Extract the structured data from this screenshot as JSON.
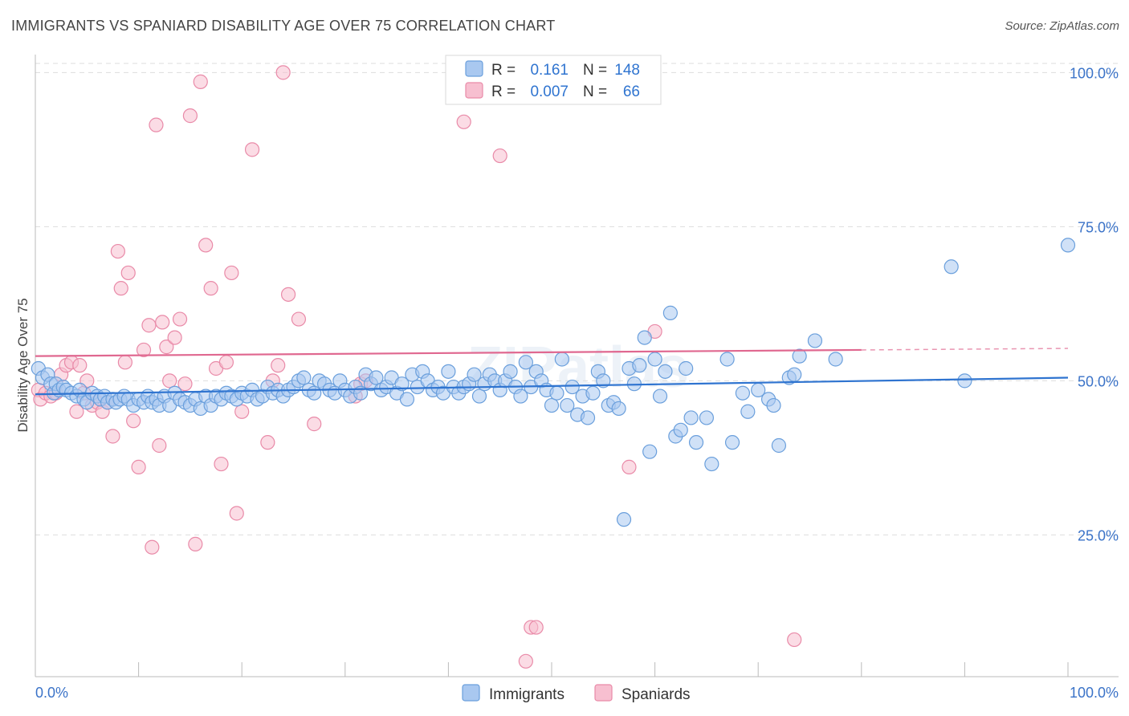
{
  "title": "IMMIGRANTS VS SPANIARD DISABILITY AGE OVER 75 CORRELATION CHART",
  "source": "Source: ZipAtlas.com",
  "watermark": "ZIPatlas",
  "colors": {
    "immigrants_fill": "#a9c8f0",
    "immigrants_stroke": "#6a9fdc",
    "immigrants_line": "#2f74d0",
    "spaniards_fill": "#f7bfd0",
    "spaniards_stroke": "#e98aa8",
    "spaniards_line": "#e06890",
    "tick_text": "#3b73c8",
    "grid": "#dddddd"
  },
  "stats_box": {
    "rows": [
      {
        "r_label": "R =",
        "r_value": "0.161",
        "n_label": "N =",
        "n_value": "148"
      },
      {
        "r_label": "R =",
        "r_value": "0.007",
        "n_label": "N =",
        "n_value": "66"
      }
    ]
  },
  "chart_data": {
    "type": "scatter",
    "title": "IMMIGRANTS VS SPANIARD DISABILITY AGE OVER 75 CORRELATION CHART",
    "xlabel": "",
    "ylabel": "Disability Age Over 75",
    "xlim": [
      0,
      100
    ],
    "ylim": [
      2,
      102
    ],
    "x_tick_labels": [
      "0.0%",
      "100.0%"
    ],
    "y_ticks": [
      25,
      50,
      75,
      100
    ],
    "y_tick_labels": [
      "25.0%",
      "50.0%",
      "75.0%",
      "100.0%"
    ],
    "grid": "horizontal dashed",
    "legend_position": "bottom-center",
    "series": [
      {
        "name": "Immigrants",
        "trend": {
          "x0": 0,
          "y0": 47.8,
          "x1": 100,
          "y1": 50.5
        },
        "points": [
          [
            0.3,
            52.0
          ],
          [
            0.7,
            50.5
          ],
          [
            1.2,
            51.0
          ],
          [
            1.5,
            49.5
          ],
          [
            1.8,
            48.0
          ],
          [
            2.0,
            49.5
          ],
          [
            2.3,
            48.5
          ],
          [
            2.7,
            49.0
          ],
          [
            3.0,
            48.5
          ],
          [
            3.5,
            48.0
          ],
          [
            4.0,
            47.5
          ],
          [
            4.3,
            48.5
          ],
          [
            4.7,
            47.0
          ],
          [
            5.0,
            46.5
          ],
          [
            5.5,
            48.0
          ],
          [
            6.0,
            47.5
          ],
          [
            6.3,
            47.0
          ],
          [
            6.7,
            47.5
          ],
          [
            7.0,
            46.5
          ],
          [
            7.5,
            47.0
          ],
          [
            7.8,
            46.5
          ],
          [
            8.2,
            47.0
          ],
          [
            8.6,
            47.5
          ],
          [
            9.0,
            47.0
          ],
          [
            9.5,
            46.0
          ],
          [
            10.0,
            47.0
          ],
          [
            10.5,
            46.5
          ],
          [
            10.9,
            47.5
          ],
          [
            11.3,
            46.5
          ],
          [
            11.7,
            47.0
          ],
          [
            12.0,
            46.0
          ],
          [
            12.5,
            47.5
          ],
          [
            13.0,
            46.0
          ],
          [
            13.5,
            48.0
          ],
          [
            14.0,
            47.0
          ],
          [
            14.5,
            46.5
          ],
          [
            15.0,
            46.0
          ],
          [
            15.5,
            47.0
          ],
          [
            16.0,
            45.5
          ],
          [
            16.5,
            47.5
          ],
          [
            17.0,
            46.0
          ],
          [
            17.5,
            47.5
          ],
          [
            18.0,
            47.0
          ],
          [
            18.5,
            48.0
          ],
          [
            19.0,
            47.5
          ],
          [
            19.5,
            47.0
          ],
          [
            20.0,
            48.0
          ],
          [
            20.5,
            47.5
          ],
          [
            21.0,
            48.5
          ],
          [
            21.5,
            47.0
          ],
          [
            22.0,
            47.5
          ],
          [
            22.5,
            49.0
          ],
          [
            23.0,
            48.0
          ],
          [
            23.5,
            48.5
          ],
          [
            24.0,
            47.5
          ],
          [
            24.5,
            48.5
          ],
          [
            25.0,
            49.0
          ],
          [
            25.5,
            50.0
          ],
          [
            26.0,
            50.5
          ],
          [
            26.5,
            48.5
          ],
          [
            27.0,
            48.0
          ],
          [
            27.5,
            50.0
          ],
          [
            28.0,
            49.5
          ],
          [
            28.5,
            48.5
          ],
          [
            29.0,
            48.0
          ],
          [
            29.5,
            50.0
          ],
          [
            30.0,
            48.5
          ],
          [
            30.5,
            47.5
          ],
          [
            31.0,
            49.0
          ],
          [
            31.5,
            48.0
          ],
          [
            32.0,
            51.0
          ],
          [
            32.5,
            49.5
          ],
          [
            33.0,
            50.5
          ],
          [
            33.5,
            48.5
          ],
          [
            34.0,
            49.0
          ],
          [
            34.5,
            50.5
          ],
          [
            35.0,
            48.0
          ],
          [
            35.5,
            49.5
          ],
          [
            36.0,
            47.0
          ],
          [
            36.5,
            51.0
          ],
          [
            37.0,
            49.0
          ],
          [
            37.5,
            51.5
          ],
          [
            38.0,
            50.0
          ],
          [
            38.5,
            48.5
          ],
          [
            39.0,
            49.0
          ],
          [
            39.5,
            48.0
          ],
          [
            40.0,
            51.5
          ],
          [
            40.5,
            49.0
          ],
          [
            41.0,
            48.0
          ],
          [
            41.5,
            49.0
          ],
          [
            42.0,
            49.5
          ],
          [
            42.5,
            51.0
          ],
          [
            43.0,
            47.5
          ],
          [
            43.5,
            49.5
          ],
          [
            44.0,
            51.0
          ],
          [
            44.5,
            50.0
          ],
          [
            45.0,
            48.5
          ],
          [
            45.5,
            50.0
          ],
          [
            46.0,
            51.5
          ],
          [
            46.5,
            49.0
          ],
          [
            47.0,
            47.5
          ],
          [
            47.5,
            53.0
          ],
          [
            48.0,
            49.0
          ],
          [
            48.5,
            51.5
          ],
          [
            49.0,
            50.0
          ],
          [
            49.5,
            48.5
          ],
          [
            50.0,
            46.0
          ],
          [
            50.5,
            48.0
          ],
          [
            51.0,
            53.5
          ],
          [
            51.5,
            46.0
          ],
          [
            52.0,
            49.0
          ],
          [
            52.5,
            44.5
          ],
          [
            53.0,
            47.5
          ],
          [
            53.5,
            44.0
          ],
          [
            54.0,
            48.0
          ],
          [
            54.5,
            51.5
          ],
          [
            55.0,
            50.0
          ],
          [
            55.5,
            46.0
          ],
          [
            56.0,
            46.5
          ],
          [
            56.5,
            45.5
          ],
          [
            57.0,
            27.5
          ],
          [
            57.5,
            52.0
          ],
          [
            58.0,
            49.5
          ],
          [
            58.5,
            52.5
          ],
          [
            59.0,
            57.0
          ],
          [
            59.5,
            38.5
          ],
          [
            60.0,
            53.5
          ],
          [
            60.5,
            47.5
          ],
          [
            61.0,
            51.5
          ],
          [
            61.5,
            61.0
          ],
          [
            62.0,
            41.0
          ],
          [
            62.5,
            42.0
          ],
          [
            63.0,
            52.0
          ],
          [
            63.5,
            44.0
          ],
          [
            64.0,
            40.0
          ],
          [
            65.0,
            44.0
          ],
          [
            65.5,
            36.5
          ],
          [
            67.0,
            53.5
          ],
          [
            67.5,
            40.0
          ],
          [
            68.5,
            48.0
          ],
          [
            69.0,
            45.0
          ],
          [
            70.0,
            48.5
          ],
          [
            71.0,
            47.0
          ],
          [
            71.5,
            46.0
          ],
          [
            72.0,
            39.5
          ],
          [
            73.0,
            50.5
          ],
          [
            73.5,
            51.0
          ],
          [
            74.0,
            54.0
          ],
          [
            75.5,
            56.5
          ],
          [
            77.5,
            53.5
          ],
          [
            88.7,
            68.5
          ],
          [
            90.0,
            50.0
          ],
          [
            100.0,
            72.0
          ]
        ]
      },
      {
        "name": "Spaniards",
        "trend": {
          "x0": 0,
          "y0": 54.0,
          "x1": 80,
          "y1": 55.0,
          "dashed_to": 100
        },
        "points": [
          [
            0.3,
            48.5
          ],
          [
            0.5,
            47.0
          ],
          [
            1.0,
            48.0
          ],
          [
            1.5,
            47.5
          ],
          [
            2.0,
            48.0
          ],
          [
            2.5,
            51.0
          ],
          [
            3.0,
            52.5
          ],
          [
            3.5,
            53.0
          ],
          [
            4.0,
            45.0
          ],
          [
            4.3,
            52.5
          ],
          [
            4.7,
            48.0
          ],
          [
            5.0,
            50.0
          ],
          [
            5.5,
            46.0
          ],
          [
            6.0,
            46.5
          ],
          [
            6.5,
            45.0
          ],
          [
            7.0,
            46.5
          ],
          [
            7.5,
            41.0
          ],
          [
            8.0,
            71.0
          ],
          [
            8.3,
            65.0
          ],
          [
            8.7,
            53.0
          ],
          [
            9.0,
            67.5
          ],
          [
            9.5,
            43.5
          ],
          [
            10.0,
            36.0
          ],
          [
            10.5,
            55.0
          ],
          [
            11.0,
            59.0
          ],
          [
            11.3,
            23.0
          ],
          [
            11.7,
            91.5
          ],
          [
            12.0,
            39.5
          ],
          [
            12.3,
            59.5
          ],
          [
            12.7,
            55.5
          ],
          [
            13.0,
            50.0
          ],
          [
            13.5,
            57.0
          ],
          [
            14.0,
            60.0
          ],
          [
            14.5,
            49.5
          ],
          [
            15.0,
            93.0
          ],
          [
            15.5,
            23.5
          ],
          [
            16.0,
            98.5
          ],
          [
            16.5,
            72.0
          ],
          [
            17.0,
            65.0
          ],
          [
            17.5,
            52.0
          ],
          [
            18.0,
            36.5
          ],
          [
            18.5,
            53.0
          ],
          [
            19.0,
            67.5
          ],
          [
            19.5,
            28.5
          ],
          [
            20.0,
            45.0
          ],
          [
            21.0,
            87.5
          ],
          [
            22.5,
            40.0
          ],
          [
            23.0,
            50.0
          ],
          [
            23.5,
            52.5
          ],
          [
            24.0,
            100.0
          ],
          [
            24.5,
            64.0
          ],
          [
            25.5,
            60.0
          ],
          [
            27.0,
            43.0
          ],
          [
            31.0,
            47.5
          ],
          [
            31.5,
            49.5
          ],
          [
            32.0,
            50.0
          ],
          [
            41.5,
            92.0
          ],
          [
            45.0,
            86.5
          ],
          [
            47.5,
            4.5
          ],
          [
            48.0,
            10.0
          ],
          [
            48.5,
            10.0
          ],
          [
            51.5,
            100.0
          ],
          [
            52.5,
            100.0
          ],
          [
            57.5,
            36.0
          ],
          [
            60.0,
            58.0
          ],
          [
            73.5,
            8.0
          ]
        ]
      }
    ]
  },
  "legend": {
    "items": [
      {
        "label": "Immigrants"
      },
      {
        "label": "Spaniards"
      }
    ]
  }
}
